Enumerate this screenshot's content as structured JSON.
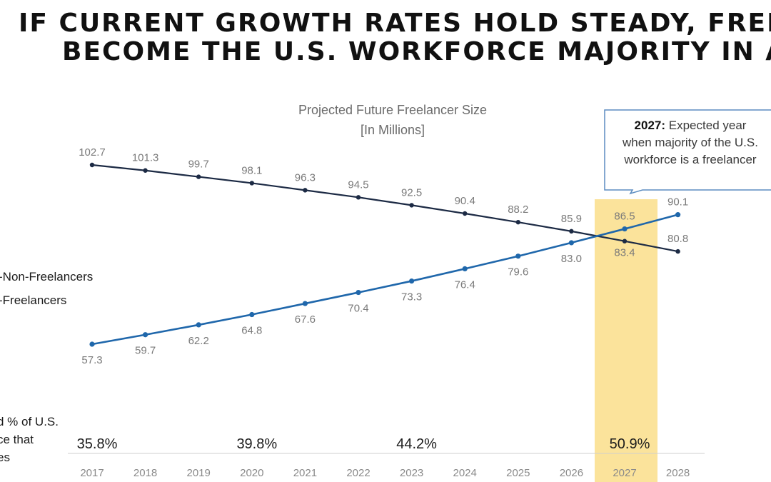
{
  "headline": {
    "line1": "IF CURRENT GROWTH RATES HOLD STEADY, FREELAN",
    "line2": "BECOME THE U.S. WORKFORCE MAJORITY IN A DEC"
  },
  "callout": {
    "year": "2027:",
    "line1": "Expected year",
    "line2": "when majority of the U.S.",
    "line3": "workforce is a freelancer"
  },
  "legend": {
    "non_freelancers": "-Non-Freelancers",
    "freelancers": "-Freelancers"
  },
  "row_label": {
    "line1": "d % of U.S.",
    "line2": "ce that",
    "line3": "es"
  },
  "colors": {
    "non_freelancers": "#1c2a44",
    "freelancers": "#1f67ab",
    "highlight": "#fbe39b",
    "callout_border": "#5b8cc0"
  },
  "chart_data": {
    "type": "line",
    "title": "Projected Future Freelancer Size",
    "subtitle": "[In Millions]",
    "categories": [
      "2017",
      "2018",
      "2019",
      "2020",
      "2021",
      "2022",
      "2023",
      "2024",
      "2025",
      "2026",
      "2027",
      "2028"
    ],
    "series": [
      {
        "name": "Non-Freelancers",
        "values": [
          102.7,
          101.3,
          99.7,
          98.1,
          96.3,
          94.5,
          92.5,
          90.4,
          88.2,
          85.9,
          83.4,
          80.8
        ]
      },
      {
        "name": "Freelancers",
        "values": [
          57.3,
          59.7,
          62.2,
          64.8,
          67.6,
          70.4,
          73.3,
          76.4,
          79.6,
          83.0,
          86.5,
          90.1
        ]
      }
    ],
    "highlight_category": "2027",
    "percent_row": [
      {
        "year": "2017",
        "label": "35.8%"
      },
      {
        "year": "2020",
        "label": "39.8%"
      },
      {
        "year": "2023",
        "label": "44.2%"
      },
      {
        "year": "2027",
        "label": "50.9%"
      }
    ],
    "ylim": [
      50,
      108
    ]
  }
}
